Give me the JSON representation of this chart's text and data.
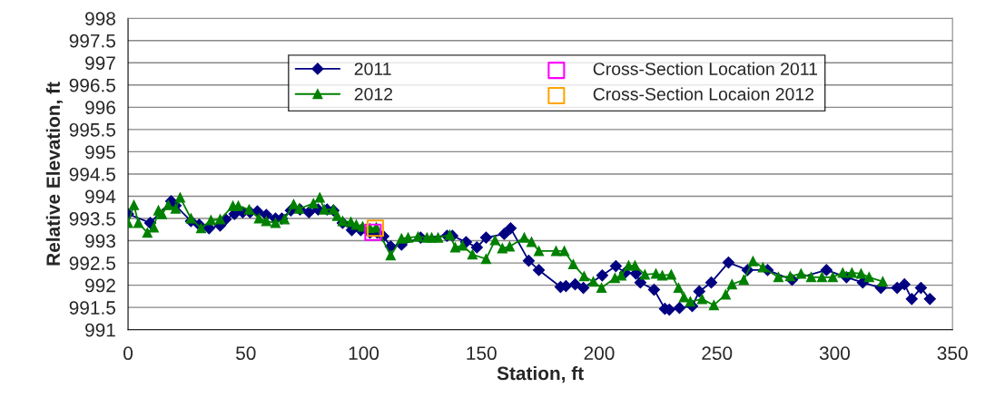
{
  "chart_data": {
    "type": "line",
    "xlabel": "Station, ft",
    "ylabel": "Relative Elevation, ft",
    "xlim": [
      0,
      350
    ],
    "xticks": [
      0,
      50,
      100,
      150,
      200,
      250,
      300,
      350
    ],
    "ylim": [
      991,
      998
    ],
    "yticks": [
      991,
      991.5,
      992,
      992.5,
      993,
      993.5,
      994,
      994.5,
      995,
      995.5,
      996,
      996.5,
      997,
      997.5,
      998
    ],
    "grid": "y",
    "legend": "top",
    "series": [
      {
        "name": "2011",
        "color": "#000080",
        "marker": "diamond",
        "line_style": "solid",
        "x": [
          0,
          9.4,
          18.3,
          20.2,
          26.7,
          30.2,
          34.4,
          39.1,
          41.4,
          45.2,
          48.7,
          51.8,
          54.9,
          58.7,
          62.6,
          65.3,
          69.1,
          73.0,
          76.8,
          80.7,
          84.5,
          87.2,
          91.1,
          95.0,
          98.8,
          102.7,
          105.8,
          108.4,
          111.5,
          116.1,
          124.2,
          135.4,
          137.7,
          143.5,
          148.1,
          152.0,
          159.7,
          162.4,
          170.1,
          174.4,
          183.6,
          185.9,
          189.8,
          193.3,
          201.3,
          207.1,
          211.0,
          215.6,
          217.5,
          223.3,
          227.9,
          229.8,
          234.1,
          239.5,
          242.5,
          247.6,
          254.9,
          263.0,
          271.5,
          281.9,
          296.5,
          305.0,
          311.9,
          319.6,
          326.5,
          329.6,
          332.7,
          336.6,
          340.4
        ],
        "values": [
          993.6,
          993.4,
          993.89,
          993.79,
          993.44,
          993.36,
          993.28,
          993.34,
          993.48,
          993.6,
          993.64,
          993.64,
          993.66,
          993.58,
          993.5,
          993.5,
          993.68,
          993.7,
          993.64,
          993.7,
          993.7,
          993.68,
          993.4,
          993.24,
          993.24,
          993.18,
          993.18,
          993.1,
          992.87,
          992.91,
          993.07,
          993.11,
          993.11,
          992.97,
          992.85,
          993.07,
          993.15,
          993.28,
          992.55,
          992.34,
          991.96,
          991.98,
          992.02,
          991.94,
          992.22,
          992.43,
          992.28,
          992.26,
          992.06,
          991.9,
          991.47,
          991.45,
          991.49,
          991.53,
          991.86,
          992.06,
          992.51,
          992.34,
          992.34,
          992.12,
          992.34,
          992.18,
          992.06,
          991.94,
          991.94,
          992.02,
          991.69,
          991.94,
          991.69
        ]
      },
      {
        "name": "2012",
        "color": "#008000",
        "marker": "triangle",
        "line_style": "solid",
        "x": [
          0,
          2.5,
          4.4,
          8.2,
          10.9,
          12.9,
          14.4,
          17.1,
          20.2,
          22.1,
          26.7,
          31.0,
          35.2,
          39.1,
          44.5,
          46.8,
          51.4,
          55.6,
          58.7,
          62.6,
          66.4,
          70.3,
          72.6,
          78.7,
          81.4,
          83.3,
          87.2,
          88.8,
          91.1,
          94.6,
          96.9,
          99.6,
          102.7,
          105.4,
          111.5,
          116.1,
          118.9,
          123.1,
          126.9,
          128.9,
          131.6,
          136.6,
          138.9,
          142.0,
          146.2,
          152.0,
          155.8,
          158.9,
          162.0,
          168.2,
          171.3,
          174.4,
          181.7,
          185.2,
          189.0,
          193.6,
          197.5,
          201.0,
          206.7,
          209.4,
          212.5,
          215.2,
          219.4,
          224.1,
          226.8,
          230.6,
          233.7,
          236.0,
          238.7,
          243.7,
          248.7,
          253.7,
          256.4,
          261.4,
          265.3,
          269.5,
          276.1,
          281.1,
          285.7,
          290.0,
          294.6,
          299.2,
          303.4,
          307.3,
          311.2,
          314.6,
          320.4
        ],
        "values": [
          993.4,
          993.8,
          993.4,
          993.18,
          993.3,
          993.68,
          993.6,
          993.8,
          993.72,
          993.97,
          993.5,
          993.28,
          993.46,
          993.48,
          993.78,
          993.78,
          993.7,
          993.5,
          993.44,
          993.4,
          993.48,
          993.82,
          993.72,
          993.84,
          993.97,
          993.7,
          993.7,
          993.56,
          993.44,
          993.42,
          993.36,
          993.32,
          993.28,
          993.3,
          992.67,
          993.05,
          993.07,
          993.09,
          993.07,
          993.07,
          993.07,
          993.13,
          992.85,
          992.89,
          992.69,
          992.59,
          993.01,
          992.83,
          992.87,
          993.07,
          992.97,
          992.77,
          992.77,
          992.77,
          992.47,
          992.2,
          992.08,
          991.94,
          992.16,
          992.22,
          992.44,
          992.44,
          992.24,
          992.26,
          992.22,
          992.24,
          991.94,
          991.73,
          991.63,
          991.69,
          991.55,
          991.79,
          992.02,
          992.12,
          992.54,
          992.4,
          992.18,
          992.2,
          992.26,
          992.18,
          992.18,
          992.18,
          992.28,
          992.28,
          992.26,
          992.18,
          992.08
        ]
      },
      {
        "name": "Cross-Section Location 2011",
        "type": "scatter",
        "color": "#ff00ff",
        "marker": "square",
        "x": [
          104
        ],
        "values": [
          993.19
        ]
      },
      {
        "name": "Cross-Section Locaion 2012",
        "type": "scatter",
        "color": "#ffa500",
        "marker": "square",
        "x": [
          105
        ],
        "values": [
          993.28
        ]
      }
    ]
  }
}
